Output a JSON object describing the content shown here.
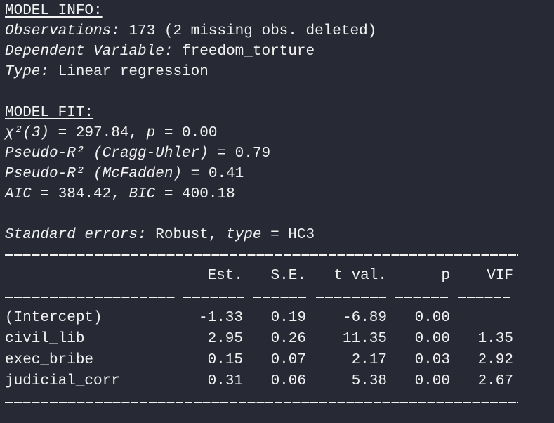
{
  "model_info": {
    "heading": "MODEL INFO:",
    "observations_label": "Observations:",
    "observations_value": " 173 (2 missing obs. deleted)",
    "dependent_label": "Dependent Variable:",
    "dependent_value": " freedom_torture",
    "type_label": "Type:",
    "type_value": " Linear regression"
  },
  "model_fit": {
    "heading": "MODEL FIT:",
    "chi_label": "χ²(3)",
    "chi_value": " = 297.84, ",
    "p_label": "p",
    "p_value": " = 0.00",
    "r2_cu_label": "Pseudo-R² (Cragg-Uhler)",
    "r2_cu_value": " = 0.79",
    "r2_mf_label": "Pseudo-R² (McFadden)",
    "r2_mf_value": " = 0.41",
    "aic_label": "AIC",
    "aic_value": " = 384.42, ",
    "bic_label": "BIC",
    "bic_value": " = 400.18"
  },
  "se": {
    "label": "Standard errors:",
    "value": " Robust, ",
    "type_label": "type",
    "type_value": " = HC3"
  },
  "table": {
    "headers": [
      "",
      "Est.",
      "S.E.",
      "t val.",
      "p",
      "VIF"
    ],
    "rows": [
      [
        "(Intercept)",
        "-1.33",
        "0.19",
        "-6.89",
        "0.00",
        ""
      ],
      [
        "civil_lib",
        "2.95",
        "0.26",
        "11.35",
        "0.00",
        "1.35"
      ],
      [
        "exec_bribe",
        "0.15",
        "0.07",
        "2.17",
        "0.03",
        "2.92"
      ],
      [
        "judicial_corr",
        "0.31",
        "0.06",
        "5.38",
        "0.00",
        "2.67"
      ]
    ]
  }
}
